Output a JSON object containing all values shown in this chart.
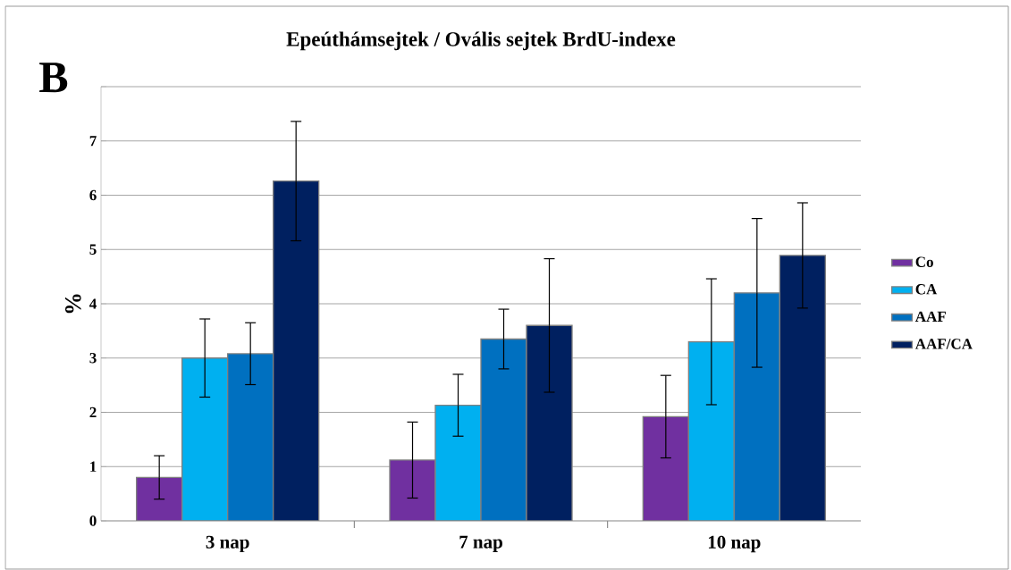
{
  "chart_data": {
    "type": "bar",
    "title": "Epeúthámsejtek / Ovális sejtek BrdU-indexe",
    "ylabel": "%",
    "annotations": [
      "B"
    ],
    "categories": [
      "3 nap",
      "7 nap",
      "10 nap"
    ],
    "series": [
      {
        "name": "Co",
        "color": "#7030a0",
        "values": [
          0.8,
          1.12,
          1.92
        ],
        "errors": [
          0.4,
          0.7,
          0.76
        ]
      },
      {
        "name": "CA",
        "color": "#00b0f0",
        "values": [
          3.0,
          2.13,
          3.3
        ],
        "errors": [
          0.72,
          0.57,
          1.16
        ]
      },
      {
        "name": "AAF",
        "color": "#0070c0",
        "values": [
          3.08,
          3.35,
          4.2
        ],
        "errors": [
          0.57,
          0.55,
          1.37
        ]
      },
      {
        "name": "AAF/CA",
        "color": "#002060",
        "values": [
          6.26,
          3.6,
          4.89
        ],
        "errors": [
          1.1,
          1.23,
          0.97
        ]
      }
    ],
    "ylim": [
      0,
      8
    ],
    "yticks": [
      0,
      1,
      2,
      3,
      4,
      5,
      6,
      7,
      {
        "value": 8,
        "label": null
      }
    ],
    "grid": "y",
    "legend": "right"
  }
}
